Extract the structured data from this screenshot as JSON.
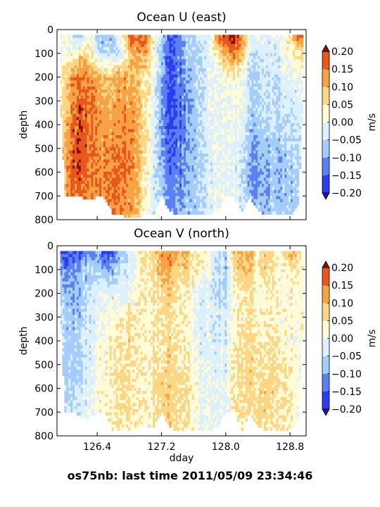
{
  "figure": {
    "suptitle": "os75nb: last time 2011/05/09 23:34:46"
  },
  "colors": {
    "levels": [
      "#2d3cf0",
      "#5a80f2",
      "#a5cdf9",
      "#dcf0fd",
      "#fffbd6",
      "#fbd685",
      "#f6a245",
      "#e8571c",
      "#c81a10"
    ],
    "under": "#1a1aa0",
    "over": "#8c0d0d",
    "nodata": "#ffffff"
  },
  "chart_data": [
    {
      "type": "heatmap",
      "title": "Ocean U (east)",
      "xlabel": "",
      "ylabel": "depth",
      "xlim": [
        125.9,
        129.0
      ],
      "ylim": [
        800,
        0
      ],
      "xticks": [
        126.4,
        127.2,
        128.0,
        128.8
      ],
      "xtick_labels": [
        "",
        "",
        "",
        ""
      ],
      "yticks": [
        0,
        100,
        200,
        300,
        400,
        500,
        600,
        700,
        800
      ],
      "colorbar": {
        "label": "m/s",
        "levels": [
          -0.2,
          -0.15,
          -0.1,
          -0.05,
          0.0,
          0.05,
          0.1,
          0.15,
          0.2
        ],
        "tick_labels": [
          "−0.20",
          "−0.15",
          "−0.10",
          "−0.05",
          "0.00",
          "0.05",
          "0.10",
          "0.15",
          "0.20"
        ],
        "extend": "both"
      },
      "time_knots": [
        125.9,
        126.0,
        126.1,
        126.2,
        126.3,
        126.4,
        126.5,
        126.6,
        126.7,
        126.8,
        126.9,
        127.0,
        127.1,
        127.2,
        127.3,
        127.4,
        127.5,
        127.6,
        127.7,
        127.8,
        127.9,
        128.0,
        128.1,
        128.2,
        128.3,
        128.4,
        128.5,
        128.6,
        128.7,
        128.8,
        128.9,
        129.0
      ],
      "depth_knots": [
        25,
        100,
        200,
        300,
        400,
        500,
        600,
        700,
        780
      ],
      "values": [
        [
          0.02,
          0.01,
          -0.03,
          -0.06,
          0.04,
          -0.06,
          -0.08,
          -0.07,
          0.05,
          0.15,
          0.17,
          0.18,
          0.05,
          -0.05,
          -0.14,
          -0.16,
          -0.05,
          -0.04,
          -0.03,
          -0.02,
          0.16,
          0.2,
          0.22,
          0.16,
          0.0,
          -0.02,
          0.0,
          -0.02,
          0.02,
          0.05,
          0.18,
          0.15
        ],
        [
          0.01,
          0.0,
          0.02,
          0.08,
          0.05,
          -0.03,
          -0.05,
          -0.06,
          -0.02,
          0.08,
          0.12,
          0.12,
          0.04,
          -0.08,
          -0.16,
          -0.14,
          -0.08,
          -0.05,
          -0.04,
          -0.02,
          0.06,
          0.12,
          0.15,
          0.12,
          -0.03,
          -0.05,
          -0.03,
          -0.04,
          0.0,
          0.02,
          0.05,
          0.04
        ],
        [
          0.04,
          0.06,
          0.14,
          0.16,
          0.14,
          0.12,
          0.09,
          0.1,
          0.13,
          0.1,
          0.1,
          0.06,
          0.02,
          -0.08,
          -0.15,
          -0.14,
          -0.1,
          -0.06,
          -0.03,
          -0.02,
          0.0,
          0.02,
          0.03,
          0.02,
          -0.06,
          -0.06,
          -0.04,
          -0.04,
          -0.02,
          -0.02,
          0.0,
          0.0
        ],
        [
          0.04,
          0.06,
          0.16,
          0.18,
          0.15,
          0.13,
          0.11,
          0.12,
          0.13,
          0.12,
          0.11,
          0.06,
          0.0,
          -0.09,
          -0.16,
          -0.15,
          -0.12,
          -0.07,
          -0.04,
          -0.02,
          0.0,
          0.0,
          0.01,
          0.0,
          -0.06,
          -0.06,
          -0.05,
          -0.05,
          -0.03,
          -0.03,
          -0.02,
          -0.02
        ],
        [
          0.05,
          0.08,
          0.17,
          0.19,
          0.16,
          0.14,
          0.12,
          0.13,
          0.14,
          0.13,
          0.12,
          0.06,
          -0.01,
          -0.09,
          -0.15,
          -0.15,
          -0.12,
          -0.07,
          -0.04,
          -0.02,
          0.0,
          0.0,
          0.0,
          -0.01,
          -0.07,
          -0.08,
          -0.06,
          -0.05,
          -0.05,
          -0.04,
          -0.03,
          -0.02
        ],
        [
          0.05,
          0.1,
          0.18,
          0.19,
          0.16,
          0.14,
          0.13,
          0.14,
          0.15,
          0.14,
          0.12,
          0.05,
          -0.02,
          -0.09,
          -0.14,
          -0.14,
          -0.11,
          -0.07,
          -0.04,
          -0.03,
          -0.01,
          0.0,
          0.0,
          -0.03,
          -0.09,
          -0.1,
          -0.08,
          -0.07,
          -0.07,
          -0.06,
          -0.05,
          -0.03
        ],
        [
          0.06,
          0.11,
          0.18,
          0.18,
          0.16,
          0.14,
          0.14,
          0.16,
          0.16,
          0.14,
          0.12,
          0.04,
          -0.02,
          -0.08,
          -0.13,
          -0.13,
          -0.1,
          -0.07,
          -0.04,
          -0.03,
          -0.01,
          0.0,
          -0.01,
          -0.04,
          -0.1,
          -0.11,
          -0.1,
          -0.08,
          -0.08,
          -0.07,
          -0.06,
          -0.04
        ],
        [
          0.06,
          0.1,
          0.17,
          0.17,
          0.15,
          0.14,
          0.14,
          0.16,
          0.15,
          0.13,
          0.11,
          0.04,
          -0.02,
          -0.07,
          -0.12,
          -0.12,
          -0.09,
          -0.07,
          -0.04,
          -0.03,
          -0.01,
          0.0,
          -0.01,
          -0.04,
          -0.09,
          -0.1,
          -0.09,
          -0.08,
          -0.08,
          -0.07,
          -0.06,
          -0.04
        ],
        [
          0.06,
          0.1,
          0.16,
          0.16,
          0.15,
          0.14,
          0.14,
          0.15,
          0.14,
          0.12,
          0.1,
          0.03,
          -0.02,
          -0.07,
          -0.11,
          -0.11,
          -0.08,
          -0.06,
          -0.04,
          -0.03,
          -0.01,
          0.0,
          -0.01,
          -0.04,
          -0.08,
          -0.09,
          -0.08,
          -0.07,
          -0.07,
          -0.06,
          -0.05,
          -0.04
        ]
      ],
      "max_depth_at_knot": [
        0,
        700,
        700,
        700,
        720,
        700,
        710,
        780,
        780,
        790,
        790,
        770,
        780,
        700,
        760,
        780,
        780,
        780,
        780,
        780,
        760,
        700,
        700,
        770,
        700,
        760,
        780,
        780,
        780,
        780,
        740,
        0
      ]
    },
    {
      "type": "heatmap",
      "title": "Ocean V (north)",
      "xlabel": "dday",
      "ylabel": "depth",
      "xlim": [
        125.9,
        129.0
      ],
      "ylim": [
        800,
        0
      ],
      "xticks": [
        126.4,
        127.2,
        128.0,
        128.8
      ],
      "xtick_labels": [
        "126.4",
        "127.2",
        "128.0",
        "128.8"
      ],
      "yticks": [
        0,
        100,
        200,
        300,
        400,
        500,
        600,
        700,
        800
      ],
      "colorbar": {
        "label": "m/s",
        "levels": [
          -0.2,
          -0.15,
          -0.1,
          -0.05,
          0.0,
          0.05,
          0.1,
          0.15,
          0.2
        ],
        "tick_labels": [
          "−0.20",
          "−0.15",
          "−0.10",
          "−0.05",
          "0.00",
          "0.05",
          "0.10",
          "0.15",
          "0.20"
        ],
        "extend": "both"
      },
      "time_knots": [
        125.9,
        126.0,
        126.1,
        126.2,
        126.3,
        126.4,
        126.5,
        126.6,
        126.7,
        126.8,
        126.9,
        127.0,
        127.1,
        127.2,
        127.3,
        127.4,
        127.5,
        127.6,
        127.7,
        127.8,
        127.9,
        128.0,
        128.1,
        128.2,
        128.3,
        128.4,
        128.5,
        128.6,
        128.7,
        128.8,
        128.9,
        129.0
      ],
      "depth_knots": [
        25,
        100,
        200,
        300,
        400,
        500,
        600,
        700,
        780
      ],
      "values": [
        [
          -0.12,
          -0.16,
          -0.18,
          -0.14,
          -0.12,
          -0.1,
          -0.16,
          -0.17,
          -0.08,
          -0.04,
          0.02,
          0.06,
          0.08,
          0.12,
          0.14,
          0.12,
          0.1,
          0.04,
          0.06,
          0.02,
          -0.04,
          -0.06,
          0.1,
          0.12,
          0.12,
          0.05,
          0.08,
          0.06,
          0.03,
          0.1,
          0.08,
          0.02
        ],
        [
          -0.08,
          -0.12,
          -0.12,
          -0.08,
          -0.06,
          -0.08,
          -0.1,
          -0.08,
          -0.04,
          -0.02,
          0.02,
          0.04,
          0.06,
          0.1,
          0.12,
          0.08,
          0.08,
          0.04,
          0.04,
          0.0,
          -0.05,
          -0.08,
          0.06,
          0.1,
          0.1,
          0.04,
          0.06,
          0.04,
          0.02,
          0.06,
          0.05,
          0.0
        ],
        [
          -0.04,
          -0.08,
          -0.1,
          -0.08,
          -0.04,
          -0.02,
          0.0,
          -0.02,
          -0.02,
          0.0,
          0.04,
          0.03,
          0.06,
          0.06,
          0.08,
          0.06,
          0.04,
          0.0,
          -0.02,
          -0.02,
          -0.04,
          -0.06,
          0.03,
          0.06,
          0.06,
          0.02,
          0.02,
          0.04,
          0.02,
          0.02,
          0.03,
          0.0
        ],
        [
          -0.02,
          -0.06,
          -0.08,
          -0.06,
          -0.03,
          -0.01,
          0.01,
          0.02,
          0.04,
          0.06,
          0.05,
          0.02,
          0.04,
          0.05,
          0.06,
          0.05,
          0.03,
          0.0,
          -0.02,
          -0.02,
          -0.03,
          -0.04,
          0.02,
          0.06,
          0.06,
          0.03,
          0.03,
          0.04,
          0.02,
          0.02,
          0.03,
          0.0
        ],
        [
          -0.02,
          -0.06,
          -0.08,
          -0.05,
          -0.02,
          0.0,
          0.02,
          0.03,
          0.05,
          0.06,
          0.05,
          0.02,
          0.04,
          0.05,
          0.07,
          0.06,
          0.04,
          0.01,
          -0.02,
          -0.02,
          -0.03,
          -0.03,
          0.04,
          0.07,
          0.07,
          0.04,
          0.04,
          0.05,
          0.03,
          0.02,
          0.03,
          0.0
        ],
        [
          -0.03,
          -0.07,
          -0.08,
          -0.05,
          -0.02,
          0.0,
          0.03,
          0.04,
          0.05,
          0.06,
          0.05,
          0.02,
          0.05,
          0.06,
          0.08,
          0.07,
          0.05,
          0.02,
          -0.01,
          -0.02,
          -0.02,
          -0.02,
          0.05,
          0.08,
          0.08,
          0.05,
          0.05,
          0.06,
          0.04,
          0.03,
          0.03,
          0.0
        ],
        [
          -0.03,
          -0.06,
          -0.07,
          -0.04,
          -0.01,
          0.01,
          0.03,
          0.04,
          0.06,
          0.06,
          0.05,
          0.02,
          0.05,
          0.07,
          0.09,
          0.08,
          0.06,
          0.03,
          0.0,
          -0.01,
          -0.01,
          -0.01,
          0.05,
          0.08,
          0.08,
          0.06,
          0.06,
          0.06,
          0.05,
          0.04,
          0.03,
          0.0
        ],
        [
          -0.02,
          -0.05,
          -0.06,
          -0.03,
          0.0,
          0.02,
          0.03,
          0.05,
          0.06,
          0.06,
          0.05,
          0.02,
          0.05,
          0.07,
          0.08,
          0.08,
          0.06,
          0.03,
          0.0,
          0.0,
          -0.01,
          -0.01,
          0.04,
          0.07,
          0.07,
          0.06,
          0.06,
          0.06,
          0.05,
          0.04,
          0.03,
          0.0
        ],
        [
          -0.02,
          -0.04,
          -0.05,
          -0.03,
          0.0,
          0.02,
          0.03,
          0.05,
          0.05,
          0.05,
          0.04,
          0.02,
          0.05,
          0.06,
          0.07,
          0.07,
          0.05,
          0.03,
          0.0,
          0.0,
          -0.01,
          -0.01,
          0.04,
          0.06,
          0.06,
          0.05,
          0.05,
          0.05,
          0.04,
          0.04,
          0.03,
          0.0
        ]
      ],
      "max_depth_at_knot": [
        0,
        700,
        700,
        720,
        720,
        700,
        700,
        780,
        780,
        780,
        780,
        760,
        770,
        700,
        760,
        780,
        780,
        780,
        780,
        780,
        760,
        700,
        700,
        780,
        700,
        760,
        780,
        780,
        780,
        780,
        740,
        0
      ]
    }
  ]
}
